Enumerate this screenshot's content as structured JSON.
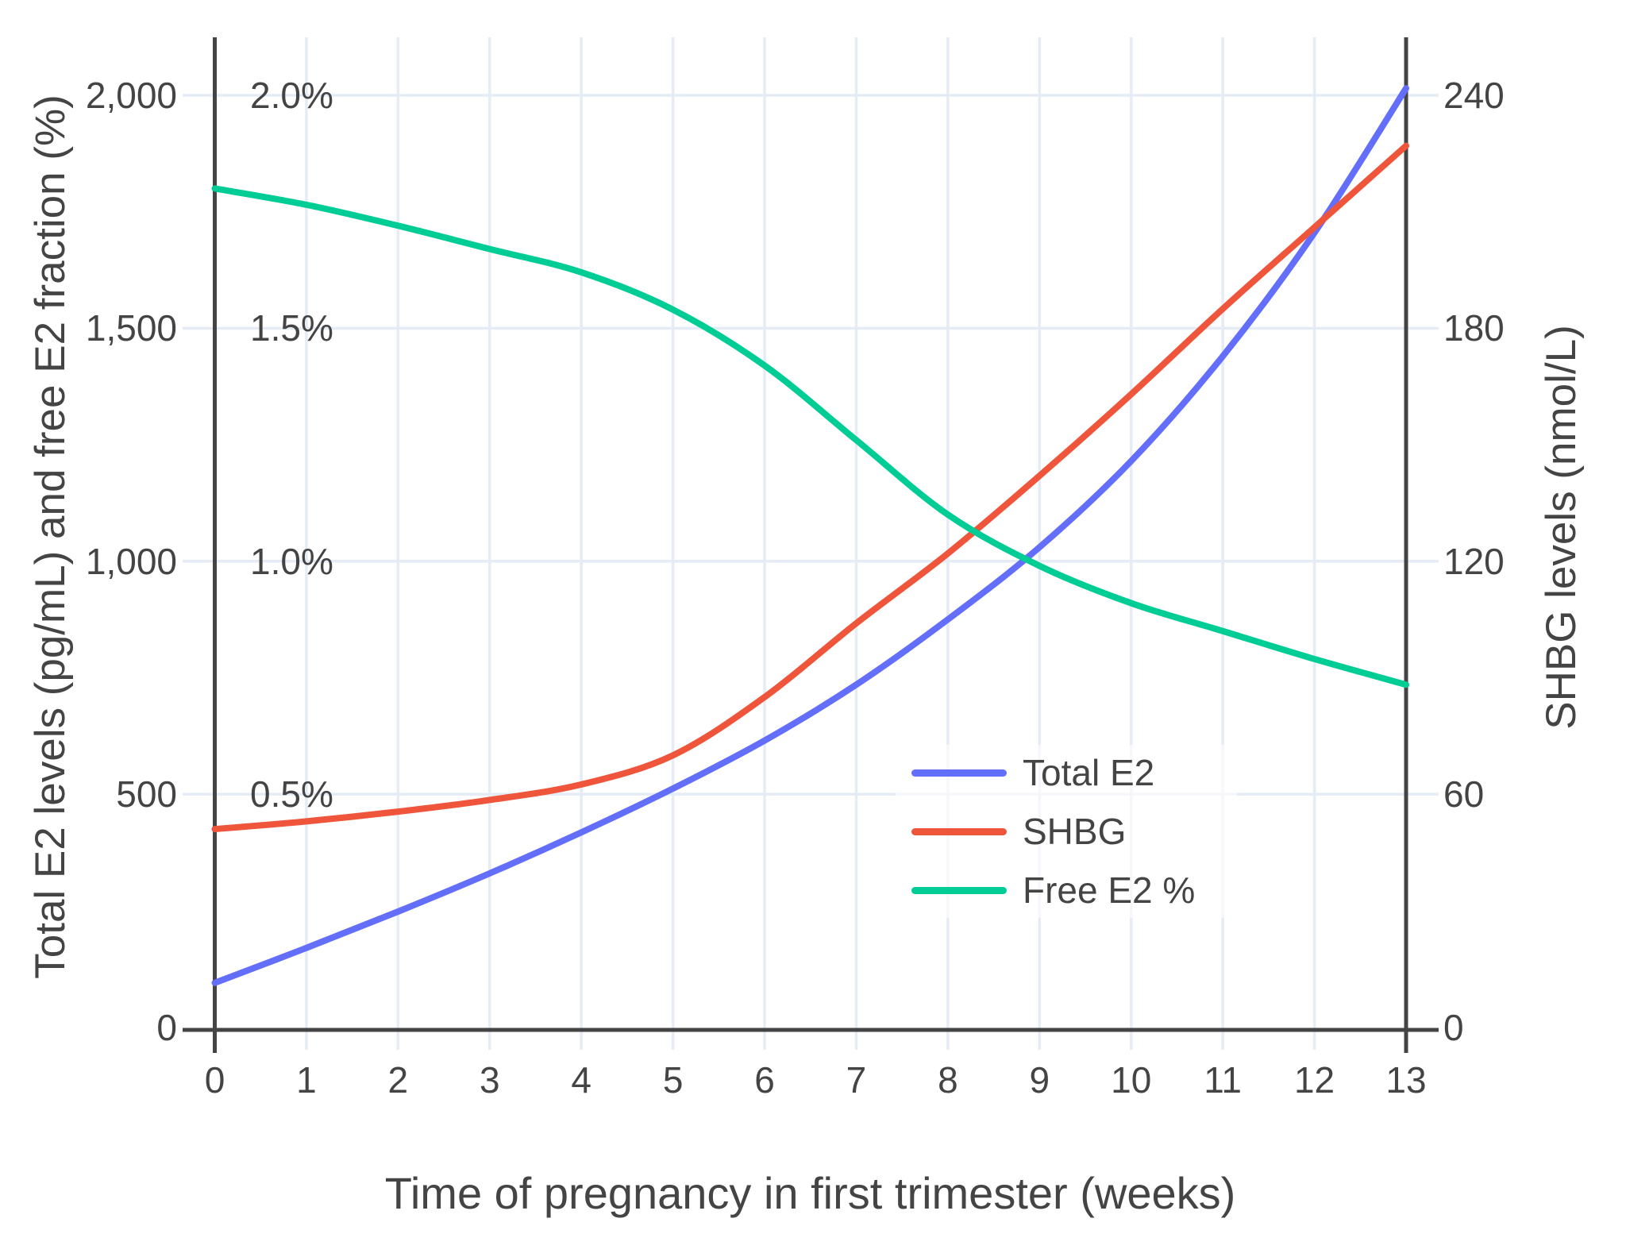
{
  "page": {
    "background": "#ffffff"
  },
  "chart_data": {
    "type": "line",
    "title": "",
    "xlabel": "Time of pregnancy in first trimester (weeks)",
    "ylabel_left": "Total E2 levels (pg/mL) and free E2 fraction (%)",
    "ylabel_right": "SHBG levels (nmol/L)",
    "x": [
      0,
      1,
      2,
      3,
      4,
      5,
      6,
      7,
      8,
      9,
      10,
      11,
      12,
      13
    ],
    "x_tick_labels": [
      "0",
      "1",
      "2",
      "3",
      "4",
      "5",
      "6",
      "7",
      "8",
      "9",
      "10",
      "11",
      "12",
      "13"
    ],
    "left_axis": {
      "tick_values": [
        0,
        500,
        1000,
        1500,
        2000
      ],
      "tick_labels": [
        "0",
        "500",
        "1,000",
        "1,500",
        "2,000"
      ],
      "range": [
        0,
        2124
      ]
    },
    "pct_axis": {
      "tick_values": [
        0.5,
        1.0,
        1.5,
        2.0
      ],
      "tick_labels": [
        "0.5%",
        "1.0%",
        "1.5%",
        "2.0%"
      ]
    },
    "right_axis": {
      "tick_values": [
        0,
        60,
        120,
        180,
        240
      ],
      "tick_labels": [
        "0",
        "60",
        "120",
        "180",
        "240"
      ],
      "range": [
        0,
        255
      ]
    },
    "grid": true,
    "legend_position": "inside-right-middle",
    "series": [
      {
        "name": "Total E2",
        "axis": "left",
        "color": "#636EFA",
        "values": [
          95,
          170,
          248,
          330,
          418,
          512,
          615,
          735,
          875,
          1030,
          1215,
          1440,
          1705,
          2015
        ]
      },
      {
        "name": "SHBG",
        "axis": "right",
        "color": "#EF553B",
        "values": [
          51,
          53,
          55.5,
          58.5,
          62.5,
          70,
          85,
          104,
          122,
          142,
          163,
          185,
          206,
          227
        ]
      },
      {
        "name": "Free E2 %",
        "axis": "pct",
        "color": "#00CC96",
        "values": [
          1.8,
          1.765,
          1.72,
          1.67,
          1.62,
          1.54,
          1.42,
          1.26,
          1.1,
          0.99,
          0.91,
          0.85,
          0.79,
          0.735
        ]
      }
    ]
  },
  "style": {
    "grid_color": "#E5ECF6",
    "axis_color": "#444444",
    "text_color": "#444444",
    "legend_bg": "rgba(255,255,255,0.6)"
  }
}
